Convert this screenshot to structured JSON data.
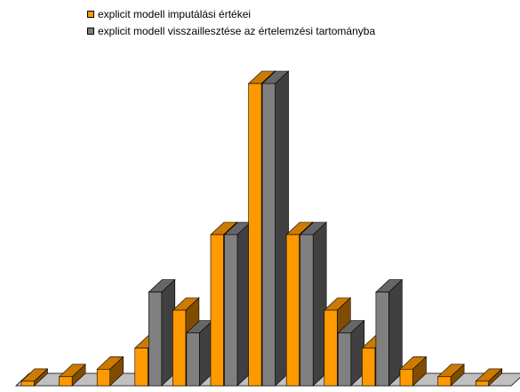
{
  "chart_data": {
    "type": "bar",
    "style": "3d-clustered-columns",
    "title": "",
    "xlabel": "",
    "ylabel": "",
    "grid": false,
    "legend_position": "top",
    "categories": [
      "",
      "",
      "",
      "",
      "",
      "",
      "",
      "",
      "",
      "",
      "",
      "",
      ""
    ],
    "ylim": [
      0,
      100
    ],
    "series": [
      {
        "name": "explicit modell imputálási értékei",
        "color": "#FF9900",
        "values": [
          1.5,
          3,
          5.5,
          12.5,
          25,
          50,
          100,
          50,
          25,
          12.5,
          5.5,
          3,
          1.5
        ]
      },
      {
        "name": "explicit modell visszaillesztése az értelemzési tartományba",
        "color": "#808080",
        "values": [
          0,
          0,
          0,
          31,
          17.5,
          50,
          100,
          50,
          17.5,
          31,
          0,
          0,
          0
        ]
      }
    ]
  }
}
